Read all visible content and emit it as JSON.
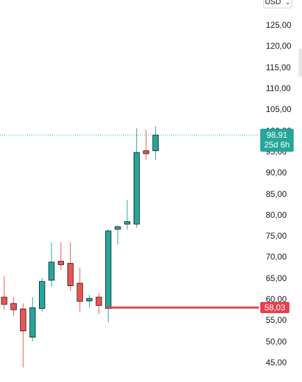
{
  "currency": {
    "label": "USD"
  },
  "chart_data": {
    "type": "candlestick",
    "ylim": [
      42,
      128
    ],
    "y_ticks": [
      125,
      120,
      115,
      110,
      105,
      100,
      95,
      90,
      85,
      80,
      75,
      70,
      65,
      60,
      55,
      50,
      45
    ],
    "tick_labels": [
      "125,00",
      "120,00",
      "115,00",
      "110,00",
      "105,00",
      "100,00",
      "95,00",
      "90,00",
      "85,00",
      "80,00",
      "75,00",
      "70,00",
      "65,00",
      "60,00",
      "55,00",
      "50,00",
      "45,00"
    ],
    "candles": [
      {
        "o": 60.5,
        "h": 65.5,
        "l": 57.5,
        "c": 58.8
      },
      {
        "o": 59.0,
        "h": 60.5,
        "l": 56.0,
        "c": 57.5
      },
      {
        "o": 57.7,
        "h": 59.0,
        "l": 43.8,
        "c": 52.5
      },
      {
        "o": 51.0,
        "h": 60.5,
        "l": 50.0,
        "c": 58.0
      },
      {
        "o": 57.8,
        "h": 65.0,
        "l": 57.0,
        "c": 64.2
      },
      {
        "o": 64.5,
        "h": 73.5,
        "l": 63.0,
        "c": 68.8
      },
      {
        "o": 69.0,
        "h": 73.5,
        "l": 67.0,
        "c": 68.2
      },
      {
        "o": 68.5,
        "h": 73.5,
        "l": 62.0,
        "c": 63.2
      },
      {
        "o": 63.8,
        "h": 67.5,
        "l": 57.0,
        "c": 59.5
      },
      {
        "o": 59.6,
        "h": 61.0,
        "l": 58.0,
        "c": 60.2
      },
      {
        "o": 60.5,
        "h": 61.5,
        "l": 56.5,
        "c": 58.5
      },
      {
        "o": 57.8,
        "h": 76.5,
        "l": 54.5,
        "c": 76.2
      },
      {
        "o": 76.6,
        "h": 77.5,
        "l": 73.0,
        "c": 77.2
      },
      {
        "o": 77.8,
        "h": 83.5,
        "l": 76.5,
        "c": 78.4
      },
      {
        "o": 77.8,
        "h": 100.5,
        "l": 77.0,
        "c": 94.8
      },
      {
        "o": 95.2,
        "h": 100.2,
        "l": 93.0,
        "c": 94.5
      },
      {
        "o": 95.2,
        "h": 101.0,
        "l": 93.0,
        "c": 98.91
      }
    ],
    "up_color": "#26a69a",
    "down_color": "#ef5350",
    "last_price": 98.91,
    "last_price_label": "98,91",
    "countdown": "25d 6h",
    "horizontal_level": 58.03,
    "horizontal_level_label": "58,03",
    "level_color": "#e8404c"
  }
}
